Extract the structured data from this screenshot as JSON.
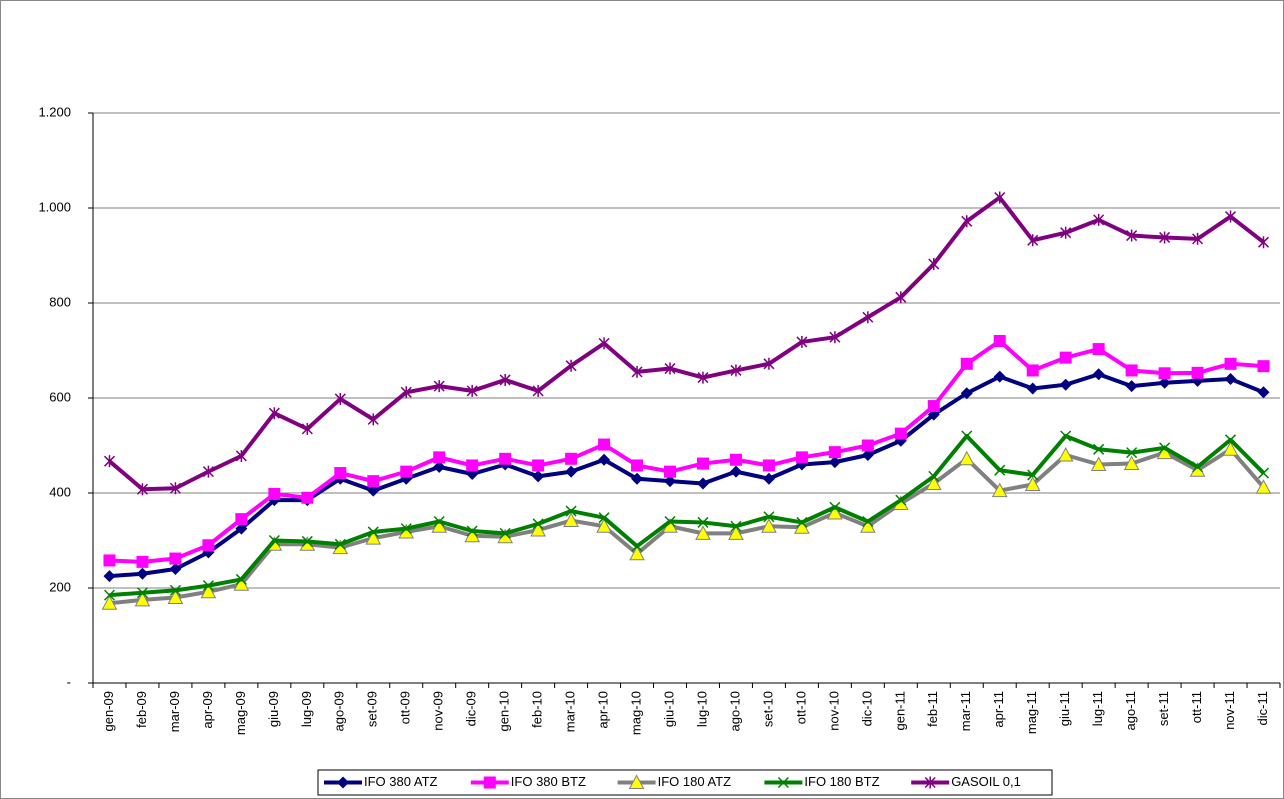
{
  "chart_data": {
    "type": "line",
    "categories": [
      "gen-09",
      "feb-09",
      "mar-09",
      "apr-09",
      "mag-09",
      "giu-09",
      "lug-09",
      "ago-09",
      "set-09",
      "ott-09",
      "nov-09",
      "dic-09",
      "gen-10",
      "feb-10",
      "mar-10",
      "apr-10",
      "mag-10",
      "giu-10",
      "lug-10",
      "ago-10",
      "set-10",
      "ott-10",
      "nov-10",
      "dic-10",
      "gen-11",
      "feb-11",
      "mar-11",
      "apr-11",
      "mag-11",
      "giu-11",
      "lug-11",
      "ago-11",
      "set-11",
      "ott-11",
      "nov-11",
      "dic-11"
    ],
    "series": [
      {
        "name": "IFO 380 ATZ",
        "color": "#000080",
        "marker": "diamond",
        "values": [
          225,
          230,
          240,
          275,
          325,
          385,
          385,
          430,
          405,
          430,
          455,
          440,
          460,
          435,
          445,
          470,
          430,
          425,
          420,
          445,
          430,
          460,
          465,
          480,
          510,
          565,
          610,
          645,
          620,
          628,
          650,
          625,
          632,
          636,
          640,
          612
        ]
      },
      {
        "name": "IFO 380 BTZ",
        "color": "#ff00ff",
        "marker": "square",
        "values": [
          258,
          255,
          262,
          290,
          345,
          398,
          390,
          442,
          425,
          445,
          475,
          458,
          472,
          458,
          472,
          502,
          458,
          445,
          462,
          470,
          458,
          475,
          486,
          500,
          525,
          583,
          672,
          720,
          658,
          685,
          703,
          658,
          652,
          653,
          672,
          667
        ]
      },
      {
        "name": "IFO 180 ATZ",
        "color": "#808080",
        "marker": "triangle",
        "marker_fill": "#ffff00",
        "values": [
          168,
          175,
          180,
          192,
          208,
          292,
          292,
          285,
          305,
          318,
          330,
          310,
          308,
          322,
          342,
          330,
          272,
          330,
          315,
          315,
          330,
          328,
          358,
          330,
          378,
          420,
          472,
          405,
          418,
          480,
          460,
          462,
          485,
          448,
          492,
          412
        ]
      },
      {
        "name": "IFO 180 BTZ",
        "color": "#008000",
        "marker": "x",
        "values": [
          185,
          190,
          195,
          205,
          218,
          300,
          298,
          292,
          318,
          325,
          340,
          320,
          315,
          335,
          362,
          348,
          288,
          340,
          338,
          330,
          350,
          338,
          370,
          340,
          385,
          435,
          520,
          448,
          438,
          520,
          492,
          485,
          495,
          455,
          512,
          442
        ]
      },
      {
        "name": "GASOIL 0,1",
        "color": "#800080",
        "marker": "star",
        "values": [
          467,
          408,
          410,
          445,
          478,
          568,
          535,
          598,
          555,
          612,
          625,
          615,
          638,
          615,
          668,
          715,
          655,
          662,
          643,
          658,
          672,
          718,
          728,
          770,
          812,
          882,
          972,
          1022,
          932,
          948,
          975,
          942,
          938,
          935,
          982,
          928
        ]
      }
    ],
    "ylim": [
      0,
      1200
    ],
    "yticks": [
      {
        "value": 0,
        "label": "-"
      },
      200,
      400,
      600,
      800,
      {
        "value": 1000,
        "label": "1.000"
      },
      {
        "value": 1200,
        "label": "1.200"
      }
    ],
    "grid": true,
    "legend": "bottom"
  }
}
